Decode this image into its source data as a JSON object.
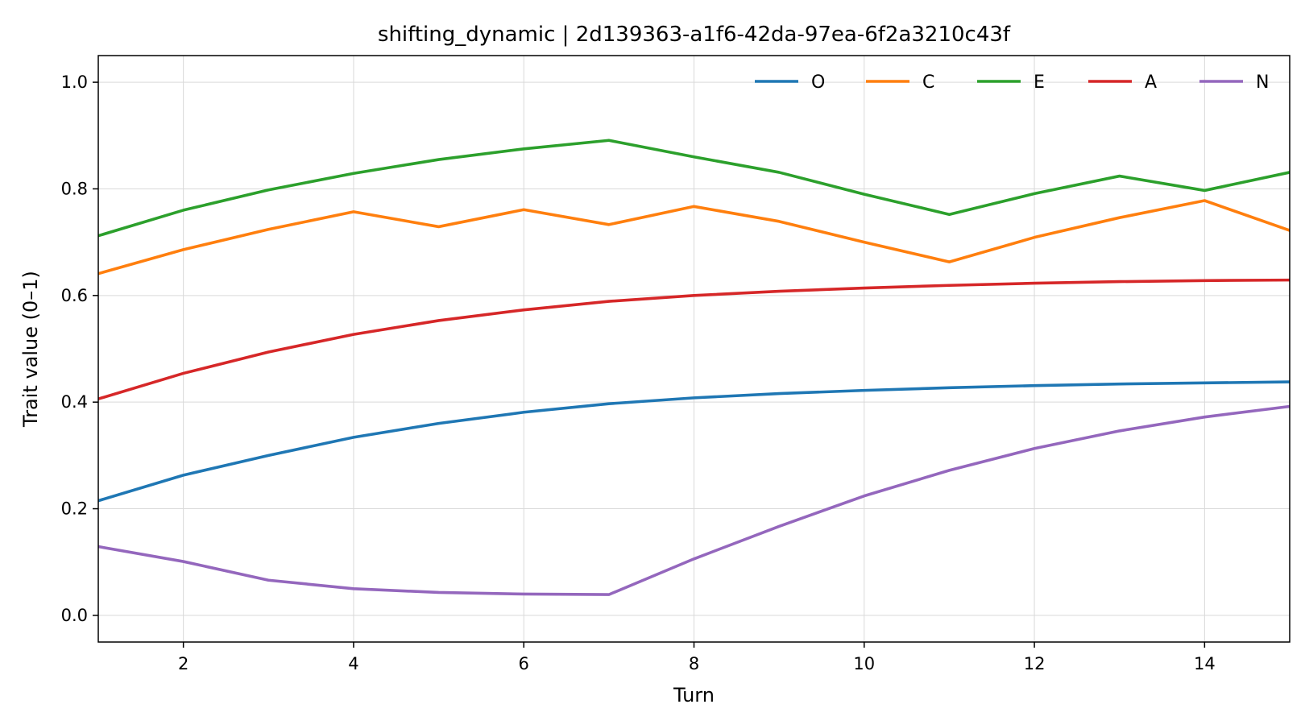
{
  "chart_data": {
    "type": "line",
    "title": "shifting_dynamic | 2d139363-a1f6-42da-97ea-6f2a3210c43f",
    "xlabel": "Turn",
    "ylabel": "Trait value (0–1)",
    "xlim": [
      1,
      15
    ],
    "ylim": [
      -0.05,
      1.05
    ],
    "xticks": [
      2,
      4,
      6,
      8,
      10,
      12,
      14
    ],
    "yticks": [
      0.0,
      0.2,
      0.4,
      0.6,
      0.8,
      1.0
    ],
    "ytick_labels": [
      "0.0",
      "0.2",
      "0.4",
      "0.6",
      "0.8",
      "1.0"
    ],
    "grid": true,
    "legend_position": "top-right",
    "x": [
      1,
      2,
      3,
      4,
      5,
      6,
      7,
      8,
      9,
      10,
      11,
      12,
      13,
      14,
      15
    ],
    "series": [
      {
        "name": "O",
        "color": "#1f77b4",
        "values": [
          0.215,
          0.263,
          0.3,
          0.334,
          0.36,
          0.381,
          0.397,
          0.408,
          0.416,
          0.422,
          0.427,
          0.431,
          0.434,
          0.436,
          0.438
        ]
      },
      {
        "name": "C",
        "color": "#ff7f0e",
        "values": [
          0.641,
          0.686,
          0.724,
          0.757,
          0.729,
          0.761,
          0.733,
          0.767,
          0.739,
          0.7,
          0.663,
          0.709,
          0.746,
          0.778,
          0.722
        ]
      },
      {
        "name": "E",
        "color": "#2ca02c",
        "values": [
          0.712,
          0.76,
          0.798,
          0.829,
          0.855,
          0.875,
          0.891,
          0.86,
          0.831,
          0.79,
          0.752,
          0.791,
          0.824,
          0.797,
          0.831
        ]
      },
      {
        "name": "A",
        "color": "#d62728",
        "values": [
          0.406,
          0.454,
          0.494,
          0.527,
          0.553,
          0.573,
          0.589,
          0.6,
          0.608,
          0.614,
          0.619,
          0.623,
          0.626,
          0.628,
          0.629
        ]
      },
      {
        "name": "N",
        "color": "#9467bd",
        "values": [
          0.129,
          0.101,
          0.066,
          0.05,
          0.043,
          0.04,
          0.039,
          0.106,
          0.167,
          0.224,
          0.272,
          0.313,
          0.346,
          0.372,
          0.392
        ]
      }
    ]
  }
}
